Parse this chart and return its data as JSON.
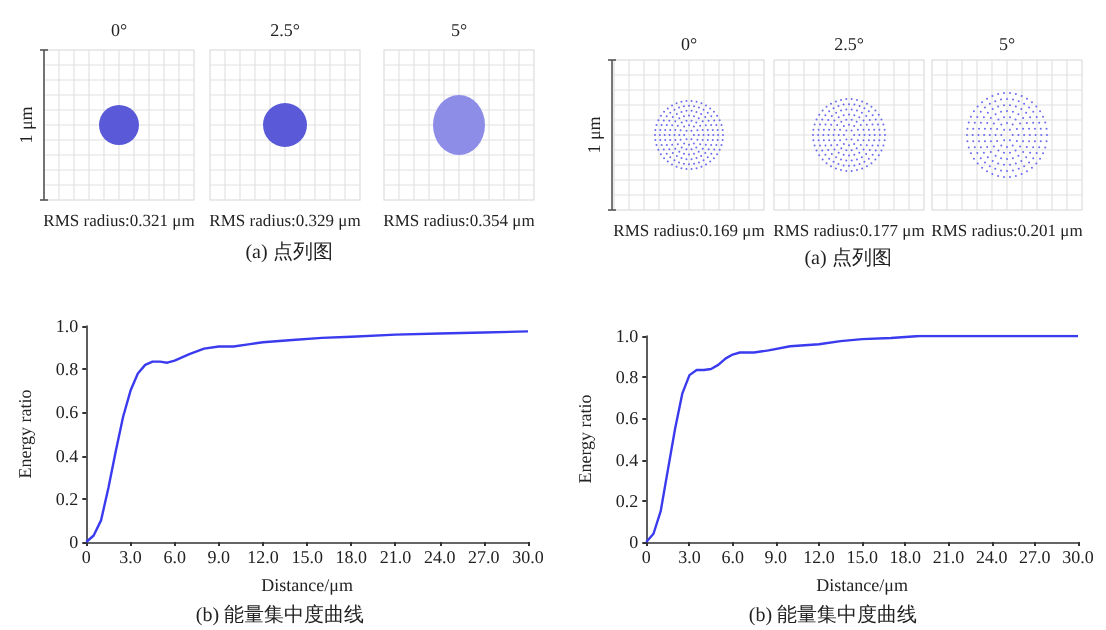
{
  "chart_data": [
    {
      "type": "other",
      "categories": [
        "0°",
        "2.5°",
        "5°"
      ],
      "ylabel": "1 μm",
      "annotations": [
        "RMS radius:0.321 μm",
        "RMS radius:0.329 μm",
        "RMS radius:0.354 μm",
        "(a) 点列图"
      ]
    },
    {
      "type": "other",
      "categories": [
        "0°",
        "2.5°",
        "5°"
      ],
      "ylabel": "1 μm",
      "annotations": [
        "RMS radius:0.169 μm",
        "RMS radius:0.177 μm",
        "RMS radius:0.201 μm",
        "(a) 点列图"
      ]
    },
    {
      "type": "line",
      "color": "#3a3aee",
      "marker": "none",
      "xlabel": "Distance/μm",
      "ylabel": "Energy ratio",
      "annotations": [
        "(b) 能量集中度曲线"
      ],
      "x": [
        0,
        0.5,
        1,
        1.5,
        2,
        2.5,
        3,
        3.5,
        4,
        4.5,
        5,
        5.5,
        6,
        7,
        8,
        9,
        10,
        11,
        12,
        14,
        16,
        18,
        21,
        24,
        27,
        30
      ],
      "values": [
        0,
        0.03,
        0.1,
        0.25,
        0.42,
        0.58,
        0.7,
        0.78,
        0.82,
        0.835,
        0.835,
        0.83,
        0.84,
        0.87,
        0.895,
        0.905,
        0.905,
        0.915,
        0.925,
        0.935,
        0.945,
        0.95,
        0.96,
        0.965,
        0.97,
        0.975
      ],
      "xlim": [
        0,
        30
      ],
      "xticks": [
        0,
        {
          "value": 3,
          "label": "3.0"
        },
        {
          "value": 6,
          "label": "6.0"
        },
        {
          "value": 9,
          "label": "9.0"
        },
        {
          "value": 12,
          "label": "12.0"
        },
        {
          "value": 15,
          "label": "15.0"
        },
        {
          "value": 18,
          "label": "18.0"
        },
        {
          "value": 21,
          "label": "21.0"
        },
        {
          "value": 24,
          "label": "24.0"
        },
        {
          "value": 27,
          "label": "27.0"
        },
        {
          "value": 30,
          "label": "30.0"
        }
      ],
      "ylim": [
        0,
        1
      ],
      "yticks": [
        0,
        0.2,
        0.4,
        0.6,
        0.8,
        {
          "value": 1,
          "label": "1.0"
        }
      ]
    },
    {
      "type": "line",
      "color": "#3a3aee",
      "marker": "none",
      "xlabel": "Distance/μm",
      "ylabel": "Energy ratio",
      "annotations": [
        "(b) 能量集中度曲线"
      ],
      "x": [
        0,
        0.5,
        1,
        1.5,
        2,
        2.5,
        3,
        3.5,
        4,
        4.5,
        5,
        5.5,
        6,
        6.5,
        7.5,
        8.5,
        10,
        12,
        13.5,
        15,
        17,
        19,
        24,
        30
      ],
      "values": [
        0,
        0.04,
        0.15,
        0.35,
        0.55,
        0.72,
        0.81,
        0.835,
        0.835,
        0.84,
        0.86,
        0.89,
        0.91,
        0.92,
        0.92,
        0.93,
        0.95,
        0.96,
        0.975,
        0.985,
        0.99,
        1,
        1,
        1
      ],
      "xlim": [
        0,
        30
      ],
      "xticks": [
        0,
        {
          "value": 3,
          "label": "3.0"
        },
        {
          "value": 6,
          "label": "6.0"
        },
        {
          "value": 9,
          "label": "9.0"
        },
        {
          "value": 12,
          "label": "12.0"
        },
        {
          "value": 15,
          "label": "15.0"
        },
        {
          "value": 18,
          "label": "18.0"
        },
        {
          "value": 21,
          "label": "21.0"
        },
        {
          "value": 24,
          "label": "24.0"
        },
        {
          "value": 27,
          "label": "27.0"
        },
        {
          "value": 30,
          "label": "30.0"
        }
      ],
      "ylim": [
        0,
        1
      ],
      "yticks": [
        0,
        0.2,
        0.4,
        0.6,
        0.8,
        {
          "value": 1,
          "label": "1.0"
        }
      ]
    }
  ]
}
